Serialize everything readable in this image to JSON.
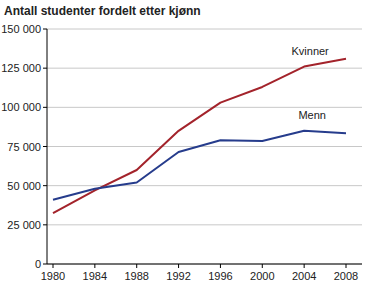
{
  "chart_data": {
    "type": "line",
    "title": "Antall studenter fordelt etter kjønn",
    "categories": [
      "1980",
      "1984",
      "1988",
      "1992",
      "1996",
      "2000",
      "2004",
      "2008"
    ],
    "series": [
      {
        "name": "Kvinner",
        "color": "#a3232b",
        "values": [
          32500,
          47000,
          60000,
          85000,
          103000,
          113000,
          126000,
          131000
        ]
      },
      {
        "name": "Menn",
        "color": "#263c8c",
        "values": [
          41000,
          48000,
          52000,
          71500,
          79000,
          78500,
          85000,
          83500
        ]
      }
    ],
    "ylim": [
      0,
      150000
    ],
    "yticks": [
      0,
      {
        "value": 25000,
        "label": "25 000"
      },
      {
        "value": 50000,
        "label": "50 000"
      },
      {
        "value": 75000,
        "label": "75 000"
      },
      {
        "value": 100000,
        "label": "100 000"
      },
      {
        "value": 125000,
        "label": "125 000"
      },
      {
        "value": 150000,
        "label": "150 000"
      }
    ],
    "grid": true
  }
}
